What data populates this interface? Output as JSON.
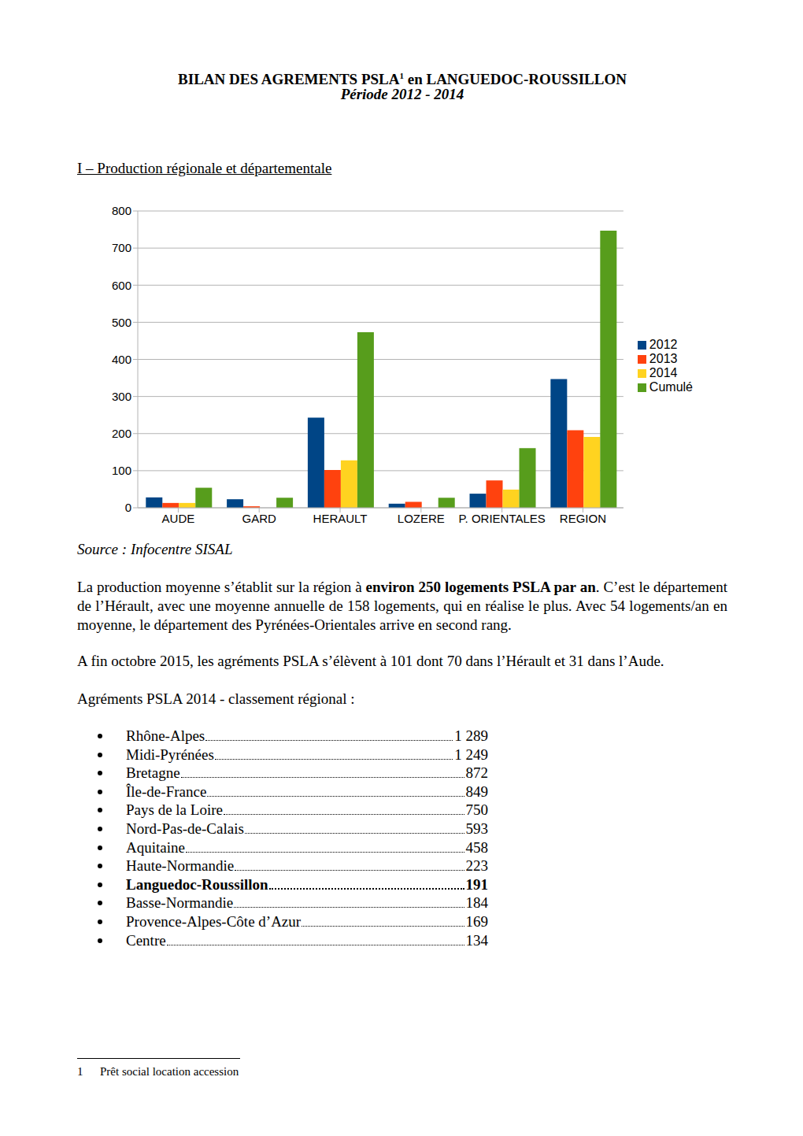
{
  "header": {
    "title": "BILAN DES AGREMENTS PSLA",
    "title_note": "1",
    "title_end": " en LANGUEDOC-ROUSSILLON",
    "subtitle": "Période 2012 - 2014"
  },
  "section": "I – Production régionale et départementale",
  "chart_data": {
    "type": "bar",
    "categories": [
      "AUDE",
      "GARD",
      "HERAULT",
      "LOZERE",
      "P. ORIENTALES",
      "REGION"
    ],
    "series": [
      {
        "name": "2012",
        "color": "#004586",
        "values": [
          28,
          23,
          243,
          11,
          38,
          347
        ]
      },
      {
        "name": "2013",
        "color": "#ff420e",
        "values": [
          13,
          4,
          102,
          16,
          74,
          209
        ]
      },
      {
        "name": "2014",
        "color": "#ffd320",
        "values": [
          13,
          0,
          128,
          0,
          49,
          191
        ]
      },
      {
        "name": "Cumulé",
        "color": "#579d1c",
        "values": [
          54,
          27,
          473,
          27,
          161,
          747
        ]
      }
    ],
    "ylim": [
      0,
      800
    ],
    "yticks": [
      0,
      100,
      200,
      300,
      400,
      500,
      600,
      700,
      800
    ],
    "grid": true,
    "legend": "right"
  },
  "source": "Source : Infocentre SISAL",
  "paragraphs": [
    [
      {
        "text": "La production moyenne s’établit sur la région à "
      },
      {
        "text": "environ 250 logements PSLA par an",
        "bold": true
      },
      {
        "text": ". C’est le département de l’Hérault, avec une moyenne annuelle de 158 logements, qui en réalise le plus. Avec 54 logements/an en moyenne, le département des Pyrénées-Orientales arrive en second rang."
      }
    ],
    [
      {
        "text": "A fin octobre 2015, les agréments PSLA s’élèvent à 101 dont 70 dans l’Hérault et 31 dans l’Aude."
      }
    ],
    [
      {
        "text": "Agréments PSLA 2014 - classement régional  :"
      }
    ]
  ],
  "ranking": [
    {
      "name": "Rhône-Alpes",
      "value": "1 289"
    },
    {
      "name": "Midi-Pyrénées",
      "value": "1 249"
    },
    {
      "name": "Bretagne",
      "value": "872"
    },
    {
      "name": "Île-de-France",
      "value": "849"
    },
    {
      "name": "Pays de la Loire",
      "value": "750"
    },
    {
      "name": "Nord-Pas-de-Calais",
      "value": "593"
    },
    {
      "name": "Aquitaine",
      "value": "458"
    },
    {
      "name": "Haute-Normandie",
      "value": "223"
    },
    {
      "name": "Languedoc-Roussillon",
      "value": "191",
      "bold": true
    },
    {
      "name": "Basse-Normandie",
      "value": "184"
    },
    {
      "name": "Provence-Alpes-Côte d’Azur",
      "value": "169"
    },
    {
      "name": "Centre",
      "value": "134"
    }
  ],
  "footnote": {
    "number": "1",
    "text": "Prêt social location accession"
  }
}
